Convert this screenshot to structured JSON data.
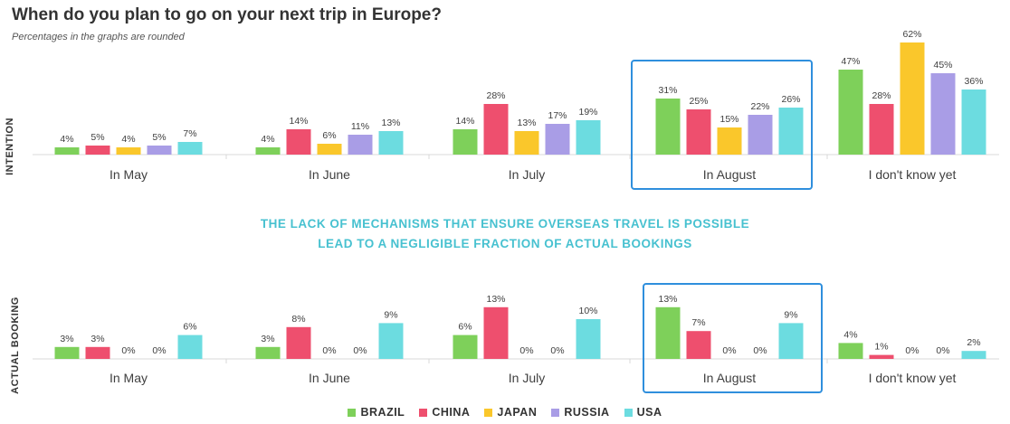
{
  "title": "When do you plan to go on your next trip in Europe?",
  "subtitle": "Percentages in the graphs are rounded",
  "callout": {
    "line1": "THE LACK OF MECHANISMS THAT ENSURE OVERSEAS TRAVEL IS POSSIBLE",
    "line2": "LEAD TO A NEGLIGIBLE FRACTION OF ACTUAL BOOKINGS"
  },
  "legend": [
    {
      "label": "BRAZIL",
      "color": "#7ed05a"
    },
    {
      "label": "CHINA",
      "color": "#ee4f6e"
    },
    {
      "label": "JAPAN",
      "color": "#fac72b"
    },
    {
      "label": "RUSSIA",
      "color": "#a99de6"
    },
    {
      "label": "USA",
      "color": "#6cdce0"
    }
  ],
  "highlight_color": "#2f8fdd",
  "chart_data": [
    {
      "type": "bar",
      "panel": "INTENTION",
      "ylabel": "INTENTION",
      "categories": [
        "In May",
        "In June",
        "In July",
        "In August",
        "I don't know yet"
      ],
      "highlight_category": "In August",
      "series": [
        {
          "name": "BRAZIL",
          "values": [
            4,
            4,
            14,
            31,
            47
          ]
        },
        {
          "name": "CHINA",
          "values": [
            5,
            14,
            28,
            25,
            28
          ]
        },
        {
          "name": "JAPAN",
          "values": [
            4,
            6,
            13,
            15,
            62
          ]
        },
        {
          "name": "RUSSIA",
          "values": [
            5,
            11,
            17,
            22,
            45
          ]
        },
        {
          "name": "USA",
          "values": [
            7,
            13,
            19,
            26,
            36
          ]
        }
      ],
      "value_suffix": "%"
    },
    {
      "type": "bar",
      "panel": "ACTUAL BOOKING",
      "ylabel": "ACTUAL  BOOKING",
      "categories": [
        "In May",
        "In June",
        "In July",
        "In August",
        "I don't know yet"
      ],
      "highlight_category": "In August",
      "series": [
        {
          "name": "BRAZIL",
          "values": [
            3,
            3,
            6,
            13,
            4
          ]
        },
        {
          "name": "CHINA",
          "values": [
            3,
            8,
            13,
            7,
            1
          ]
        },
        {
          "name": "JAPAN",
          "values": [
            0,
            0,
            0,
            0,
            0
          ]
        },
        {
          "name": "RUSSIA",
          "values": [
            0,
            0,
            0,
            0,
            0
          ]
        },
        {
          "name": "USA",
          "values": [
            6,
            9,
            10,
            9,
            2
          ]
        }
      ],
      "value_suffix": "%"
    }
  ]
}
